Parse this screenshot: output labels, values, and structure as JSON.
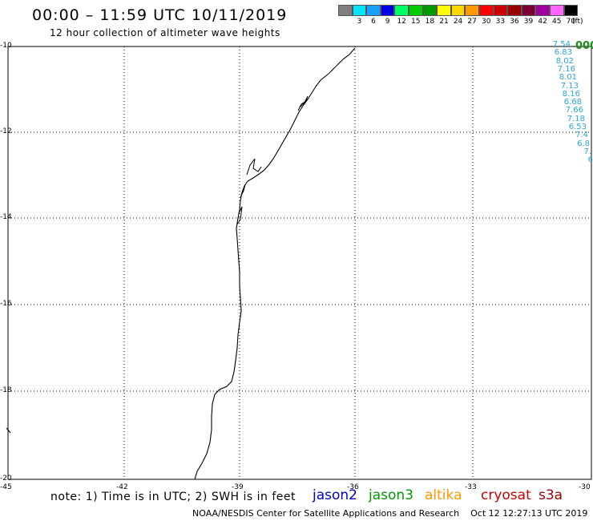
{
  "header": {
    "title": "00:00 – 11:59 UTC 10/11/2019",
    "subtitle": "12 hour collection of altimeter wave heights"
  },
  "legend": {
    "unit": "(ft)",
    "items": [
      {
        "label": "",
        "color": "#7f7f7f"
      },
      {
        "label": "3",
        "color": "#00e5ff"
      },
      {
        "label": "6",
        "color": "#1aa0ff"
      },
      {
        "label": "9",
        "color": "#0000e6"
      },
      {
        "label": "12",
        "color": "#00ff66"
      },
      {
        "label": "15",
        "color": "#00cc00"
      },
      {
        "label": "18",
        "color": "#009900"
      },
      {
        "label": "21",
        "color": "#ffff00"
      },
      {
        "label": "24",
        "color": "#ffd700"
      },
      {
        "label": "27",
        "color": "#ff9900"
      },
      {
        "label": "30",
        "color": "#ff0000"
      },
      {
        "label": "33",
        "color": "#cc0000"
      },
      {
        "label": "36",
        "color": "#990000"
      },
      {
        "label": "39",
        "color": "#7a0033"
      },
      {
        "label": "42",
        "color": "#a000a0"
      },
      {
        "label": "45",
        "color": "#ff66ff"
      },
      {
        "label": "70",
        "color": "#000000"
      }
    ]
  },
  "map": {
    "lat_ticks": [
      "-10",
      "-12",
      "-14",
      "-16",
      "-18",
      "-20"
    ],
    "lon_ticks": [
      "-45",
      "-42",
      "-39",
      "-36",
      "-33",
      "-30"
    ]
  },
  "wave_heights": [
    "7.54",
    "6.83",
    "8.02",
    "7.16",
    "8.01",
    "7.13",
    "8.16",
    "6.68",
    "7.66",
    "7.18",
    "6.53",
    "7.4",
    "6.8",
    "7.",
    "6"
  ],
  "extra_label": "000",
  "note": "note: 1) Time is in UTC; 2) SWH is in feet",
  "satellites": [
    {
      "name": "jason2",
      "color": "#0000cc"
    },
    {
      "name": "jason3",
      "color": "#009900"
    },
    {
      "name": "altika",
      "color": "#ff9900"
    },
    {
      "name": "cryosat",
      "color": "#cc0000"
    },
    {
      "name": "s3a",
      "color": "#990000"
    }
  ],
  "footer": {
    "credit": "NOAA/NESDIS Center for Satellite Applications and Research",
    "timestamp": "Oct 12 12:27:13 UTC 2019"
  }
}
